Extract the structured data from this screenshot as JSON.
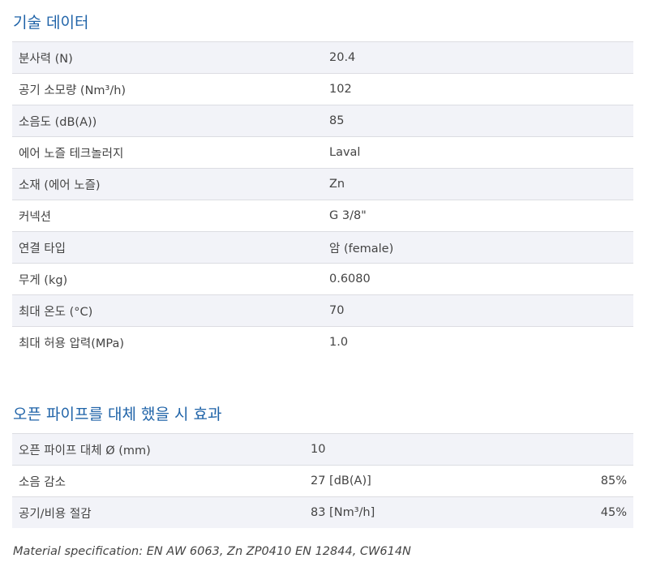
{
  "technical": {
    "title": "기술 데이터",
    "rows": [
      {
        "label": "분사력 (N)",
        "value": "20.4"
      },
      {
        "label": "공기 소모량 (Nm³/h)",
        "value": "102"
      },
      {
        "label": "소음도 (dB(A))",
        "value": "85"
      },
      {
        "label": "에어 노즐 테크놀러지",
        "value": "Laval"
      },
      {
        "label": "소재 (에어 노즐)",
        "value": "Zn"
      },
      {
        "label": "커넥션",
        "value": "G 3/8\""
      },
      {
        "label": "연결 타입",
        "value": "암 (female)"
      },
      {
        "label": "무게 (kg)",
        "value": "0.6080"
      },
      {
        "label": "최대 온도 (°C)",
        "value": "70"
      },
      {
        "label": "최대 허용 압력(MPa)",
        "value": "1.0"
      }
    ]
  },
  "effect": {
    "title": "오픈 파이프를 대체 했을 시 효과",
    "rows": [
      {
        "label": "오픈 파이프 대체 Ø (mm)",
        "value": "10",
        "percent": ""
      },
      {
        "label": "소음 감소",
        "value": "27 [dB(A)]",
        "percent": "85%"
      },
      {
        "label": "공기/비용 절감",
        "value": "83 [Nm³/h]",
        "percent": "45%"
      }
    ]
  },
  "footnote": "Material specification: EN AW 6063, Zn ZP0410 EN 12844, CW614N"
}
